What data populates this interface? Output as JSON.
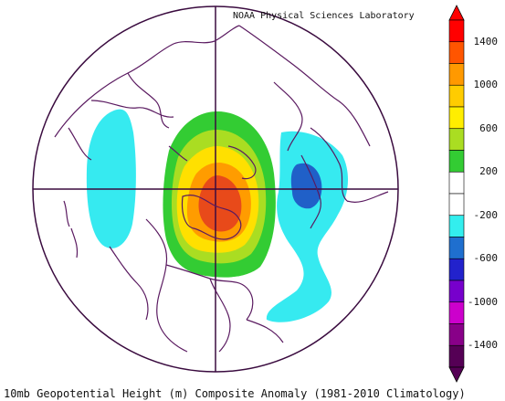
{
  "lab_label": "NOAA Physical Sciences Laboratory",
  "footer_title": "10mb Geopotential Height (m) Composite Anomaly (1981-2010 Climatology)",
  "colorbar": {
    "labels": [
      "1400",
      "1000",
      "600",
      "200",
      "-200",
      "-600",
      "-1000",
      "-1400"
    ],
    "colors_top_to_bottom": [
      "#ff0000",
      "#ff5500",
      "#ff9900",
      "#ffcc00",
      "#ffee00",
      "#aadd22",
      "#33cc33",
      "#ffffff",
      "#ffffff",
      "#33eeee",
      "#1f6fcf",
      "#2222cc",
      "#7700cc",
      "#cc00cc",
      "#880088",
      "#550055"
    ]
  },
  "map": {
    "projection": "north polar stereographic",
    "anomaly_colors": {
      "strong_positive": "#e84a1a",
      "positive_orange": "#ff9c00",
      "positive_yellow": "#ffe000",
      "weak_positive_green": "#33cc33",
      "negative_cyan": "#36eaf0",
      "negative_blue": "#2060c8"
    },
    "coastline_color": "#5a1a60"
  }
}
